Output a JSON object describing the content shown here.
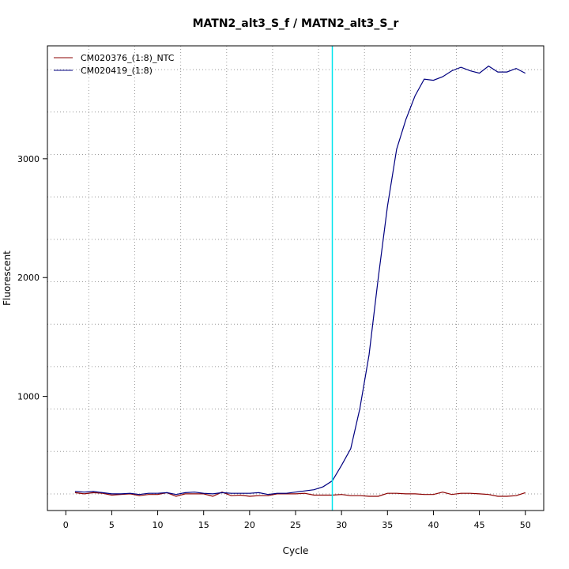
{
  "colors": {
    "cm020376": "#8b0000",
    "cm020419": "#000080",
    "threshold": "#00e5ee",
    "grid": "#9a9a9a",
    "axis": "#000000"
  },
  "chart_data": {
    "type": "line",
    "title": "MATN2_alt3_S_f / MATN2_alt3_S_r",
    "xlabel": "Cycle",
    "ylabel": "Fluorescent",
    "xlim": [
      -2.0,
      52.0
    ],
    "ylim": [
      40,
      3950
    ],
    "x_ticks": [
      0,
      5,
      10,
      15,
      20,
      25,
      30,
      35,
      40,
      45,
      50
    ],
    "y_ticks": [
      1000,
      2000,
      3000
    ],
    "grid": true,
    "grid_style": "dotted",
    "legend_position": "top-left",
    "threshold_cycle": 29,
    "x": [
      1,
      2,
      3,
      4,
      5,
      6,
      7,
      8,
      9,
      10,
      11,
      12,
      13,
      14,
      15,
      16,
      17,
      18,
      19,
      20,
      21,
      22,
      23,
      24,
      25,
      26,
      27,
      28,
      29,
      30,
      31,
      32,
      33,
      34,
      35,
      36,
      37,
      38,
      39,
      40,
      41,
      42,
      43,
      44,
      45,
      46,
      47,
      48,
      49,
      50
    ],
    "series": [
      {
        "name": "CM020376_(1:8)_NTC",
        "color": "#8b0000",
        "values": [
          190,
          180,
          190,
          185,
          170,
          175,
          180,
          165,
          175,
          175,
          190,
          160,
          180,
          180,
          180,
          160,
          195,
          165,
          170,
          160,
          165,
          165,
          180,
          180,
          180,
          185,
          170,
          170,
          170,
          175,
          165,
          165,
          160,
          160,
          185,
          185,
          180,
          180,
          175,
          175,
          195,
          175,
          185,
          185,
          180,
          175,
          160,
          160,
          165,
          190
        ]
      },
      {
        "name": "CM020419_(1:8)",
        "color": "#000080",
        "values": [
          200,
          195,
          200,
          190,
          180,
          180,
          185,
          175,
          185,
          185,
          190,
          175,
          190,
          195,
          185,
          180,
          190,
          185,
          185,
          185,
          190,
          175,
          185,
          185,
          195,
          205,
          215,
          240,
          290,
          420,
          560,
          900,
          1350,
          2000,
          2600,
          3080,
          3330,
          3530,
          3670,
          3660,
          3690,
          3740,
          3770,
          3740,
          3720,
          3780,
          3730,
          3730,
          3760,
          3720
        ]
      }
    ]
  }
}
